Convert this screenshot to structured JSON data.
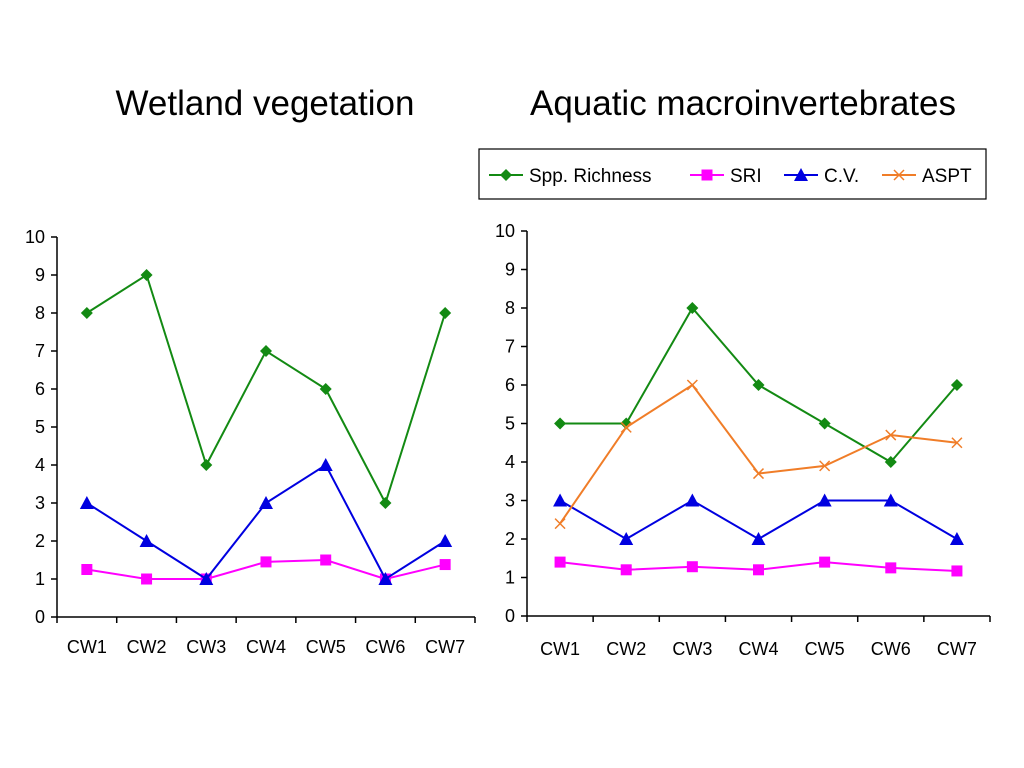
{
  "colors": {
    "Spp. Richness": "#138a13",
    "SRI": "#ff00ff",
    "C.V.": "#0000e0",
    "ASPT": "#f07d28"
  },
  "markers": {
    "Spp. Richness": "diamond",
    "SRI": "square",
    "C.V.": "triangle",
    "ASPT": "cross"
  },
  "legend": {
    "items": [
      "Spp. Richness",
      "SRI",
      "C.V.",
      "ASPT"
    ]
  },
  "chart_data": [
    {
      "type": "line",
      "title": "Wetland vegetation",
      "categories": [
        "CW1",
        "CW2",
        "CW3",
        "CW4",
        "CW5",
        "CW6",
        "CW7"
      ],
      "ylim": [
        0,
        10
      ],
      "yticks": [
        0,
        1,
        2,
        3,
        4,
        5,
        6,
        7,
        8,
        9,
        10
      ],
      "grid": false,
      "series": [
        {
          "name": "Spp. Richness",
          "values": [
            8,
            9,
            4,
            7,
            6,
            3,
            8
          ]
        },
        {
          "name": "SRI",
          "values": [
            1.25,
            1.0,
            1.0,
            1.45,
            1.5,
            1.0,
            1.38
          ]
        },
        {
          "name": "C.V.",
          "values": [
            3,
            2,
            1,
            3,
            4,
            1,
            2
          ]
        }
      ]
    },
    {
      "type": "line",
      "title": "Aquatic macroinvertebrates",
      "categories": [
        "CW1",
        "CW2",
        "CW3",
        "CW4",
        "CW5",
        "CW6",
        "CW7"
      ],
      "ylim": [
        0,
        10
      ],
      "yticks": [
        0,
        1,
        2,
        3,
        4,
        5,
        6,
        7,
        8,
        9,
        10
      ],
      "grid": false,
      "legend_position": "top",
      "series": [
        {
          "name": "Spp. Richness",
          "values": [
            5,
            5,
            8,
            6,
            5,
            4,
            6
          ]
        },
        {
          "name": "SRI",
          "values": [
            1.4,
            1.2,
            1.28,
            1.2,
            1.4,
            1.25,
            1.17
          ]
        },
        {
          "name": "C.V.",
          "values": [
            3,
            2,
            3,
            2,
            3,
            3,
            2
          ]
        },
        {
          "name": "ASPT",
          "values": [
            2.4,
            4.9,
            6.0,
            3.7,
            3.9,
            4.7,
            4.5
          ]
        }
      ]
    }
  ]
}
